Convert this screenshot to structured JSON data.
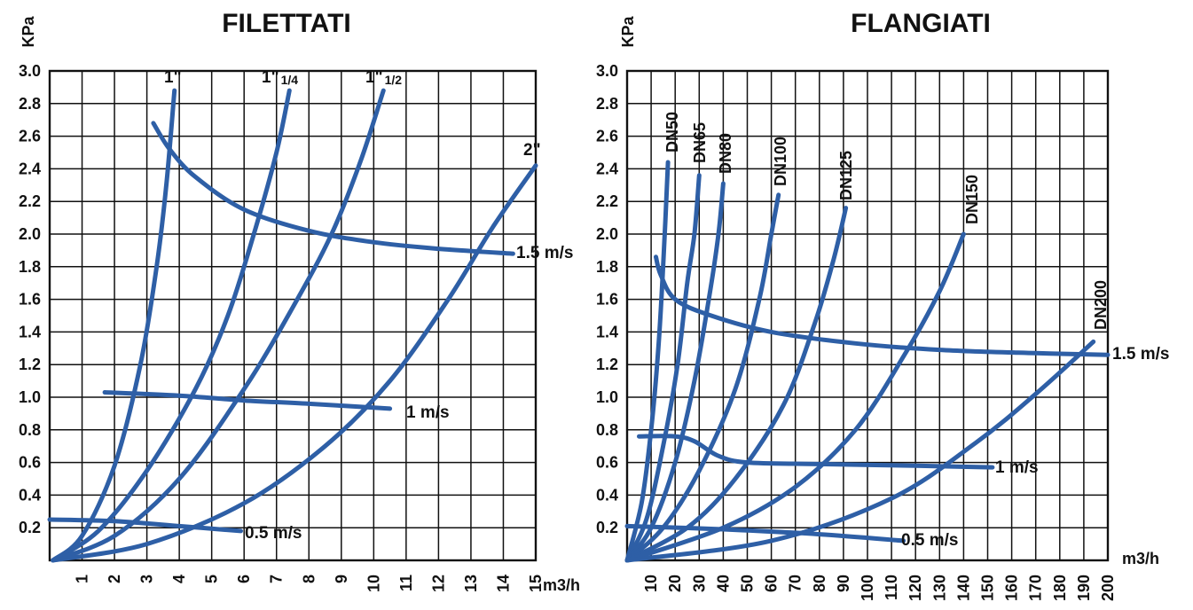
{
  "chart_data": [
    {
      "type": "line",
      "title": "FILETTATI",
      "ylabel": "KPa",
      "xlabel": "m3/h",
      "xlim": [
        0,
        15
      ],
      "ylim": [
        0,
        3.0
      ],
      "x_ticks": [
        "1",
        "2",
        "3",
        "4",
        "5",
        "6",
        "7",
        "8",
        "9",
        "10",
        "11",
        "12",
        "13",
        "14",
        "15"
      ],
      "y_ticks": [
        "0.2",
        "0.4",
        "0.6",
        "0.8",
        "1.0",
        "1.2",
        "1.4",
        "1.6",
        "1.8",
        "2.0",
        "2.2",
        "2.4",
        "2.6",
        "2.8",
        "3.0"
      ],
      "grid": true,
      "line_color": "#2e5fa6",
      "series": [
        {
          "name": "1\"",
          "label_main": "1\"",
          "label_sub": "",
          "points": [
            [
              0.1,
              0.0
            ],
            [
              1.0,
              0.15
            ],
            [
              2.0,
              0.58
            ],
            [
              2.8,
              1.2
            ],
            [
              3.3,
              1.8
            ],
            [
              3.6,
              2.3
            ],
            [
              3.85,
              2.88
            ]
          ]
        },
        {
          "name": "1\" 1/4",
          "label_main": "1\"",
          "label_sub": "1/4",
          "points": [
            [
              0.1,
              0.0
            ],
            [
              1.5,
              0.18
            ],
            [
              3.0,
              0.55
            ],
            [
              4.5,
              1.05
            ],
            [
              5.5,
              1.5
            ],
            [
              6.3,
              2.0
            ],
            [
              7.0,
              2.5
            ],
            [
              7.4,
              2.88
            ]
          ]
        },
        {
          "name": "1\" 1/2",
          "label_main": "1\"",
          "label_sub": "1/2",
          "points": [
            [
              0.1,
              0.0
            ],
            [
              2.0,
              0.15
            ],
            [
              4.0,
              0.5
            ],
            [
              6.0,
              1.05
            ],
            [
              7.5,
              1.55
            ],
            [
              8.7,
              2.0
            ],
            [
              9.6,
              2.45
            ],
            [
              10.3,
              2.88
            ]
          ]
        },
        {
          "name": "2\"",
          "label_main": "2\"",
          "label_sub": "",
          "points": [
            [
              0.1,
              0.0
            ],
            [
              3.0,
              0.1
            ],
            [
              6.0,
              0.35
            ],
            [
              8.5,
              0.7
            ],
            [
              10.5,
              1.1
            ],
            [
              12.3,
              1.6
            ],
            [
              13.7,
              2.05
            ],
            [
              15.0,
              2.42
            ]
          ]
        },
        {
          "name": "1.5 m/s",
          "label_main": "1.5 m/s",
          "label_sub": "",
          "points": [
            [
              3.2,
              2.68
            ],
            [
              3.7,
              2.52
            ],
            [
              4.5,
              2.35
            ],
            [
              6.0,
              2.15
            ],
            [
              8.0,
              2.02
            ],
            [
              10.0,
              1.95
            ],
            [
              12.0,
              1.91
            ],
            [
              14.3,
              1.88
            ]
          ]
        },
        {
          "name": "1 m/s",
          "label_main": "1 m/s",
          "label_sub": "",
          "points": [
            [
              1.7,
              1.03
            ],
            [
              4.0,
              1.01
            ],
            [
              6.0,
              0.98
            ],
            [
              8.0,
              0.96
            ],
            [
              10.5,
              0.93
            ]
          ]
        },
        {
          "name": "0.5 m/s",
          "label_main": "0.5 m/s",
          "label_sub": "",
          "points": [
            [
              0.0,
              0.25
            ],
            [
              2.0,
              0.24
            ],
            [
              4.0,
              0.21
            ],
            [
              5.9,
              0.18
            ]
          ]
        }
      ]
    },
    {
      "type": "line",
      "title": "FLANGIATI",
      "ylabel": "KPa",
      "xlabel": "m3/h",
      "xlim": [
        0,
        200
      ],
      "ylim": [
        0,
        3.0
      ],
      "x_ticks": [
        "10",
        "20",
        "30",
        "40",
        "50",
        "60",
        "70",
        "80",
        "90",
        "100",
        "110",
        "120",
        "130",
        "140",
        "150",
        "160",
        "170",
        "180",
        "190",
        "200"
      ],
      "y_ticks": [
        "0.2",
        "0.4",
        "0.6",
        "0.8",
        "1.0",
        "1.2",
        "1.4",
        "1.6",
        "1.8",
        "2.0",
        "2.2",
        "2.4",
        "2.6",
        "2.8",
        "3.0"
      ],
      "grid": true,
      "line_color": "#2e5fa6",
      "series": [
        {
          "name": "DN50",
          "label_main": "DN50",
          "label_sub": "",
          "points": [
            [
              0,
              0.0
            ],
            [
              6,
              0.35
            ],
            [
              10,
              0.8
            ],
            [
              13,
              1.3
            ],
            [
              15,
              1.8
            ],
            [
              17,
              2.44
            ]
          ]
        },
        {
          "name": "DN65",
          "label_main": "DN65",
          "label_sub": "",
          "points": [
            [
              0,
              0.0
            ],
            [
              8,
              0.25
            ],
            [
              15,
              0.7
            ],
            [
              21,
              1.2
            ],
            [
              25,
              1.7
            ],
            [
              28,
              2.0
            ],
            [
              30,
              2.36
            ]
          ]
        },
        {
          "name": "DN80",
          "label_main": "DN80",
          "label_sub": "",
          "points": [
            [
              0,
              0.0
            ],
            [
              10,
              0.2
            ],
            [
              20,
              0.6
            ],
            [
              28,
              1.1
            ],
            [
              34,
              1.6
            ],
            [
              38,
              2.0
            ],
            [
              40,
              2.31
            ]
          ]
        },
        {
          "name": "DN100",
          "label_main": "DN100",
          "label_sub": "",
          "points": [
            [
              0,
              0.0
            ],
            [
              15,
              0.2
            ],
            [
              30,
              0.55
            ],
            [
              45,
              1.05
            ],
            [
              55,
              1.6
            ],
            [
              60,
              2.0
            ],
            [
              63,
              2.24
            ]
          ]
        },
        {
          "name": "DN125",
          "label_main": "DN125",
          "label_sub": "",
          "points": [
            [
              0,
              0.0
            ],
            [
              25,
              0.2
            ],
            [
              45,
              0.5
            ],
            [
              65,
              0.95
            ],
            [
              78,
              1.45
            ],
            [
              86,
              1.85
            ],
            [
              91,
              2.16
            ]
          ]
        },
        {
          "name": "DN150",
          "label_main": "DN150",
          "label_sub": "",
          "points": [
            [
              0,
              0.0
            ],
            [
              40,
              0.2
            ],
            [
              70,
              0.45
            ],
            [
              95,
              0.8
            ],
            [
              115,
              1.25
            ],
            [
              130,
              1.65
            ],
            [
              140,
              2.0
            ]
          ]
        },
        {
          "name": "DN200",
          "label_main": "DN200",
          "label_sub": "",
          "points": [
            [
              0,
              0.0
            ],
            [
              60,
              0.12
            ],
            [
              110,
              0.38
            ],
            [
              145,
              0.72
            ],
            [
              170,
              1.02
            ],
            [
              194,
              1.34
            ]
          ]
        },
        {
          "name": "1.5 m/s",
          "label_main": "1.5 m/s",
          "label_sub": "",
          "points": [
            [
              12,
              1.86
            ],
            [
              14,
              1.75
            ],
            [
              20,
              1.6
            ],
            [
              35,
              1.5
            ],
            [
              60,
              1.4
            ],
            [
              95,
              1.33
            ],
            [
              130,
              1.29
            ],
            [
              170,
              1.27
            ],
            [
              200,
              1.26
            ]
          ]
        },
        {
          "name": "1 m/s",
          "label_main": "1 m/s",
          "label_sub": "",
          "points": [
            [
              5,
              0.76
            ],
            [
              20,
              0.76
            ],
            [
              28,
              0.73
            ],
            [
              38,
              0.64
            ],
            [
              50,
              0.6
            ],
            [
              80,
              0.59
            ],
            [
              120,
              0.58
            ],
            [
              152,
              0.57
            ]
          ]
        },
        {
          "name": "0.5 m/s",
          "label_main": "0.5 m/s",
          "label_sub": "",
          "points": [
            [
              0,
              0.21
            ],
            [
              40,
              0.19
            ],
            [
              80,
              0.16
            ],
            [
              115,
              0.12
            ]
          ]
        }
      ]
    }
  ]
}
